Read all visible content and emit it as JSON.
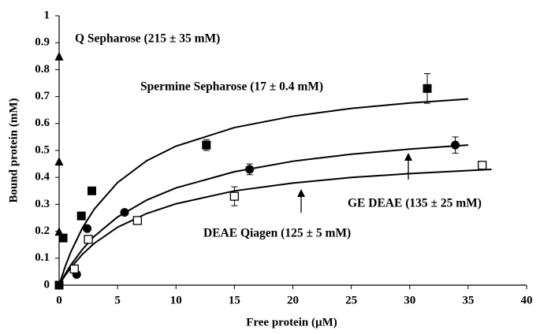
{
  "chart_data": {
    "type": "scatter",
    "x_label": "Free protein (µM)",
    "y_label": "Bound protein (mM)",
    "xlim": [
      0,
      40
    ],
    "xticks": [
      0,
      5,
      10,
      15,
      20,
      25,
      30,
      35,
      40
    ],
    "ylim": [
      0,
      1
    ],
    "yticks": [
      0,
      0.1,
      0.2,
      0.3,
      0.4,
      0.5,
      0.6,
      0.7,
      0.8,
      0.9,
      1
    ],
    "grid": false,
    "series": [
      {
        "name": "Q Sepharose (215 ± 35 mM)",
        "color": "#000000",
        "marker": "triangle",
        "x": [
          0,
          0,
          0
        ],
        "values": [
          0.85,
          0.46,
          0.2
        ],
        "errors": [
          null,
          null,
          null
        ]
      },
      {
        "name": "Spermine Sepharose (17 ± 0.4 mM)",
        "color": "#000000",
        "marker": "square",
        "x": [
          0,
          0.34,
          1.9,
          2.8,
          12.6,
          31.5
        ],
        "values": [
          0,
          0.175,
          0.257,
          0.35,
          0.52,
          0.73
        ],
        "errors": [
          null,
          null,
          null,
          null,
          0.02,
          0.055
        ]
      },
      {
        "name": "GE DEAE (135 ± 25 mM)",
        "color": "#000000",
        "marker": "circle",
        "x": [
          1.5,
          2.4,
          5.6,
          16.3,
          33.9
        ],
        "values": [
          0.04,
          0.21,
          0.27,
          0.43,
          0.52
        ],
        "errors": [
          null,
          null,
          null,
          0.02,
          0.03
        ]
      },
      {
        "name": "DEAE Qiagen (125 ± 5 mM)",
        "color": "#000000",
        "marker": "open-square",
        "x": [
          1.3,
          2.5,
          6.7,
          15,
          36.2
        ],
        "values": [
          0.06,
          0.17,
          0.24,
          0.33,
          0.445
        ],
        "errors": [
          null,
          null,
          null,
          0.035,
          0.01
        ]
      }
    ],
    "fits": [
      {
        "color": "#000000",
        "x": [
          0,
          0.5,
          1,
          2,
          3,
          5,
          7.5,
          10,
          15,
          20,
          25,
          30,
          35
        ],
        "values": [
          0,
          0.067,
          0.123,
          0.213,
          0.282,
          0.381,
          0.462,
          0.516,
          0.585,
          0.627,
          0.656,
          0.676,
          0.691
        ]
      },
      {
        "color": "#000000",
        "x": [
          0,
          0.5,
          1,
          2,
          3,
          5,
          7.5,
          10,
          15,
          20,
          25,
          30,
          35
        ],
        "values": [
          0,
          0.04,
          0.075,
          0.133,
          0.181,
          0.253,
          0.316,
          0.361,
          0.421,
          0.46,
          0.486,
          0.505,
          0.52
        ]
      },
      {
        "color": "#000000",
        "x": [
          0,
          0.5,
          1,
          2,
          3,
          5,
          7.5,
          10,
          15,
          20,
          25,
          30,
          37
        ],
        "values": [
          0,
          0.035,
          0.065,
          0.115,
          0.155,
          0.215,
          0.266,
          0.302,
          0.35,
          0.379,
          0.4,
          0.414,
          0.43
        ]
      }
    ]
  }
}
